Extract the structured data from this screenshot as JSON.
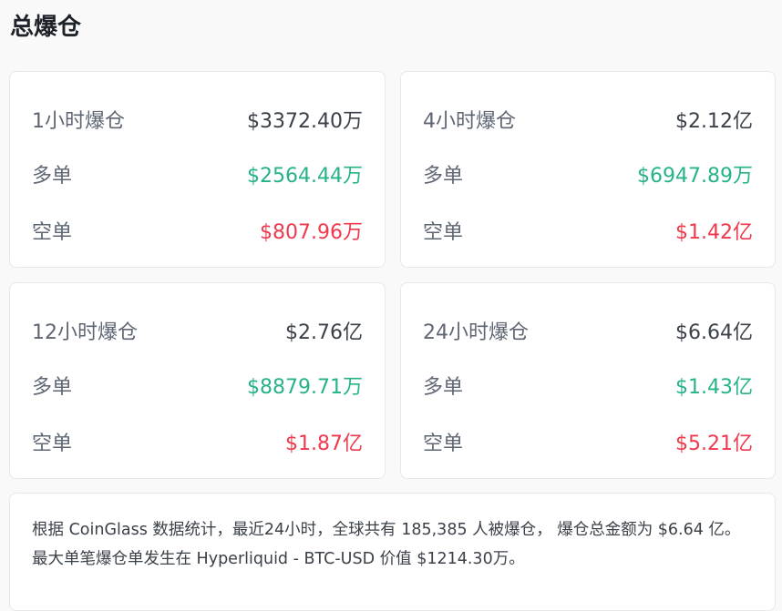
{
  "title": "总爆仓",
  "colors": {
    "long": "#26b38a",
    "short": "#f0384d"
  },
  "cards": [
    {
      "label": "1小时爆仓",
      "total": "$3372.40万",
      "long_label": "多单",
      "long": "$2564.44万",
      "short_label": "空单",
      "short": "$807.96万"
    },
    {
      "label": "4小时爆仓",
      "total": "$2.12亿",
      "long_label": "多单",
      "long": "$6947.89万",
      "short_label": "空单",
      "short": "$1.42亿"
    },
    {
      "label": "12小时爆仓",
      "total": "$2.76亿",
      "long_label": "多单",
      "long": "$8879.71万",
      "short_label": "空单",
      "short": "$1.87亿"
    },
    {
      "label": "24小时爆仓",
      "total": "$6.64亿",
      "long_label": "多单",
      "long": "$1.43亿",
      "short_label": "空单",
      "short": "$5.21亿"
    }
  ],
  "summary": "根据 CoinGlass 数据统计，最近24小时，全球共有 185,385 人被爆仓， 爆仓总金额为 $6.64 亿。最大单笔爆仓单发生在 Hyperliquid - BTC-USD 价值 $1214.30万。"
}
